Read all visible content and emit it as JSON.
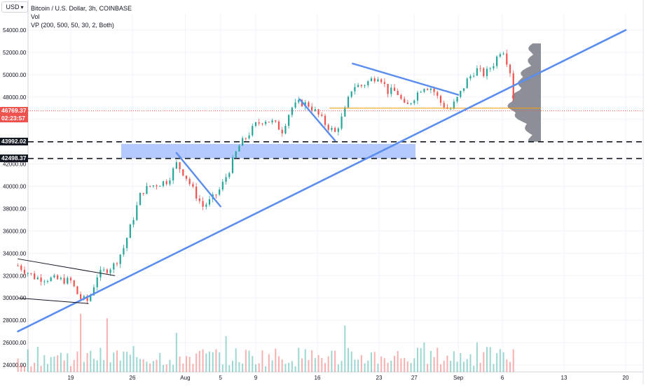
{
  "header": {
    "symbol_button": "USD",
    "title": "Bitcoin / U.S. Dollar, 3h, COINBASE",
    "vol_label": "Vol",
    "vp_label": "VP (200, 500, 50, 30, 2, Both)"
  },
  "price_tags": {
    "current_price": "46769.37",
    "countdown": "02:23:57",
    "level_upper": "43992.02",
    "level_lower": "42498.37"
  },
  "colors": {
    "up": "#26a69a",
    "down": "#ef5350",
    "trendline": "#5b8def",
    "zone": "#9bb8ff",
    "poc": "#ff9800",
    "profile": "#787b86"
  },
  "chart_data": {
    "type": "candlestick",
    "title": "Bitcoin / U.S. Dollar, 3h, COINBASE",
    "y_ticks": [
      "54000.00",
      "52000.00",
      "50000.00",
      "48000.00",
      "46000.00",
      "44000.00",
      "42000.00",
      "40000.00",
      "38000.00",
      "36000.00",
      "34000.00",
      "32000.00",
      "30000.00",
      "28000.00",
      "26000.00",
      "24000.00"
    ],
    "x_ticks": [
      "19",
      "26",
      "Aug",
      "5",
      "9",
      "16",
      "23",
      "27",
      "Sep",
      "6",
      "13",
      "20"
    ],
    "ylim": [
      23500,
      55000
    ],
    "grid": true,
    "last_price": 46769.37,
    "horizontal_levels": [
      43992.02,
      42498.37
    ],
    "zone": [
      42500,
      43800
    ],
    "poc": 47000,
    "trendlines": [
      {
        "from": [
          "Jul 13",
          27000
        ],
        "to": [
          "Sep 20",
          54000
        ]
      },
      {
        "from": [
          "Jul 13",
          33500
        ],
        "to": [
          "Jul 24",
          32000
        ]
      },
      {
        "from": [
          "Jul 13",
          30000
        ],
        "to": [
          "Jul 21",
          29500
        ]
      },
      {
        "from": [
          "Jul 31",
          43000
        ],
        "to": [
          "Aug 5",
          38200
        ]
      },
      {
        "from": [
          "Aug 14",
          47800
        ],
        "to": [
          "Aug 18",
          44100
        ]
      },
      {
        "from": [
          "Aug 20",
          51000
        ],
        "to": [
          "Sep 1",
          48200
        ]
      }
    ],
    "close_path": [
      [
        "Jul 13",
        32900
      ],
      [
        "Jul 15",
        31800
      ],
      [
        "Jul 17",
        31700
      ],
      [
        "Jul 19",
        31500
      ],
      [
        "Jul 20",
        30000
      ],
      [
        "Jul 21",
        29700
      ],
      [
        "Jul 22",
        32000
      ],
      [
        "Jul 24",
        33000
      ],
      [
        "Jul 25",
        34500
      ],
      [
        "Jul 26",
        36900
      ],
      [
        "Jul 27",
        39500
      ],
      [
        "Jul 28",
        40000
      ],
      [
        "Jul 30",
        40500
      ],
      [
        "Jul 31",
        42000
      ],
      [
        "Aug 1",
        41000
      ],
      [
        "Aug 2",
        39500
      ],
      [
        "Aug 3",
        38200
      ],
      [
        "Aug 4",
        38800
      ],
      [
        "Aug 5",
        39800
      ],
      [
        "Aug 6",
        41500
      ],
      [
        "Aug 7",
        43500
      ],
      [
        "Aug 8",
        44500
      ],
      [
        "Aug 9",
        45500
      ],
      [
        "Aug 10",
        46000
      ],
      [
        "Aug 11",
        45700
      ],
      [
        "Aug 12",
        45000
      ],
      [
        "Aug 13",
        47000
      ],
      [
        "Aug 14",
        47500
      ],
      [
        "Aug 15",
        47300
      ],
      [
        "Aug 16",
        46500
      ],
      [
        "Aug 17",
        45500
      ],
      [
        "Aug 18",
        44800
      ],
      [
        "Aug 19",
        46500
      ],
      [
        "Aug 20",
        49000
      ],
      [
        "Aug 21",
        49000
      ],
      [
        "Aug 22",
        49500
      ],
      [
        "Aug 23",
        50000
      ],
      [
        "Aug 24",
        48500
      ],
      [
        "Aug 25",
        48500
      ],
      [
        "Aug 26",
        47000
      ],
      [
        "Aug 27",
        48000
      ],
      [
        "Aug 28",
        49000
      ],
      [
        "Aug 29",
        48800
      ],
      [
        "Aug 30",
        47500
      ],
      [
        "Aug 31",
        46800
      ],
      [
        "Sep 1",
        48000
      ],
      [
        "Sep 2",
        49500
      ],
      [
        "Sep 3",
        50500
      ],
      [
        "Sep 4",
        50000
      ],
      [
        "Sep 5",
        51000
      ],
      [
        "Sep 6",
        52500
      ],
      [
        "Sep 7",
        50000
      ],
      [
        "Sep 7.4",
        46769
      ]
    ]
  }
}
